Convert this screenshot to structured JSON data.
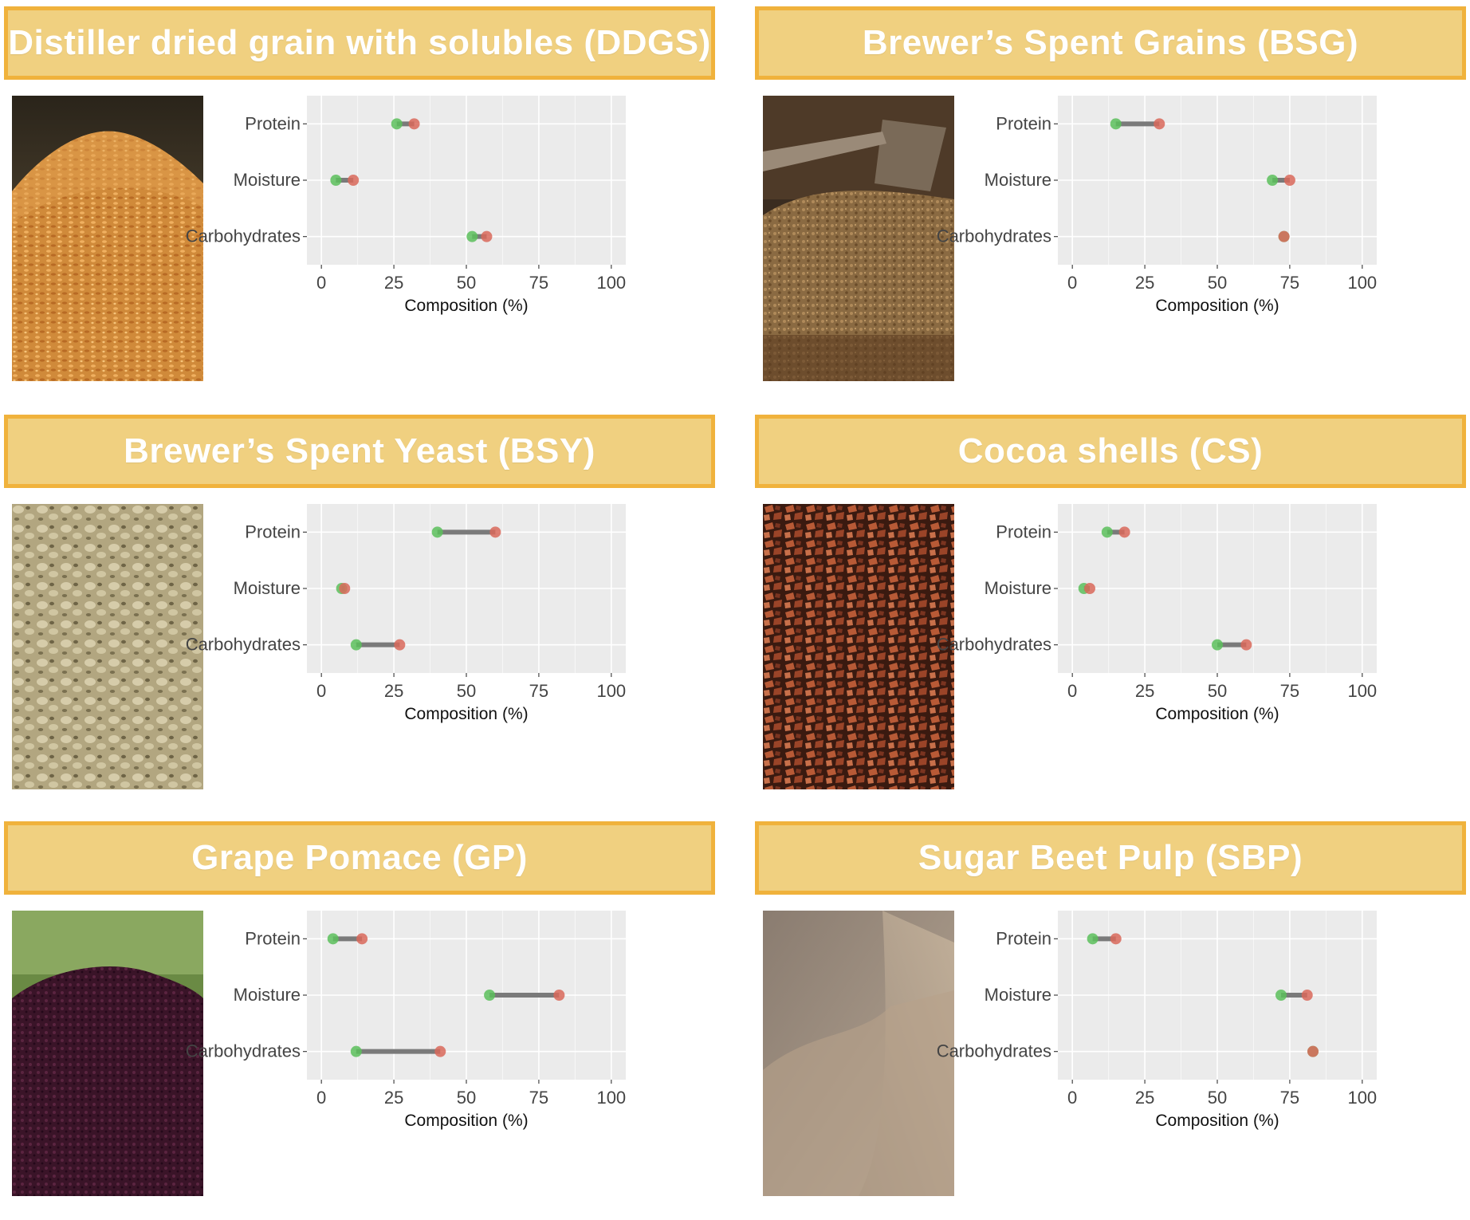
{
  "chart_data": [
    {
      "type": "dumbbell",
      "title": "Distiller dried grain with solubles (DDGS)",
      "image": "ddgs-photo",
      "categories": [
        "Protein",
        "Moisture",
        "Carbohydrates"
      ],
      "series": [
        {
          "name": "",
          "values": [
            26,
            5,
            52
          ]
        },
        {
          "name": "",
          "values": [
            32,
            11,
            57
          ]
        }
      ],
      "xlabel": "Composition (%)",
      "xticks": [
        0,
        25,
        50,
        75,
        100
      ],
      "xlim": [
        -5,
        105
      ],
      "grid": true,
      "colors": {
        "min": "#5cbf5c",
        "max": "#d9695a",
        "segment": "#7a7a7a",
        "background": "#ebebeb"
      }
    },
    {
      "type": "dumbbell",
      "title": "Brewer’s Spent Grains (BSG)",
      "image": "bsg-photo",
      "categories": [
        "Protein",
        "Moisture",
        "Carbohydrates"
      ],
      "series": [
        {
          "name": "",
          "values": [
            15,
            69,
            73
          ]
        },
        {
          "name": "",
          "values": [
            30,
            75,
            73
          ]
        }
      ],
      "xlabel": "Composition (%)",
      "xticks": [
        0,
        25,
        50,
        75,
        100
      ],
      "xlim": [
        -5,
        105
      ],
      "grid": true,
      "colors": {
        "min": "#5cbf5c",
        "max": "#d9695a",
        "segment": "#7a7a7a",
        "background": "#ebebeb"
      }
    },
    {
      "type": "dumbbell",
      "title": "Brewer’s Spent Yeast (BSY)",
      "image": "bsy-photo",
      "categories": [
        "Protein",
        "Moisture",
        "Carbohydrates"
      ],
      "series": [
        {
          "name": "",
          "values": [
            40,
            7,
            12
          ]
        },
        {
          "name": "",
          "values": [
            60,
            8,
            27
          ]
        }
      ],
      "xlabel": "Composition (%)",
      "xticks": [
        0,
        25,
        50,
        75,
        100
      ],
      "xlim": [
        -5,
        105
      ],
      "grid": true,
      "colors": {
        "min": "#5cbf5c",
        "max": "#d9695a",
        "segment": "#7a7a7a",
        "background": "#ebebeb"
      }
    },
    {
      "type": "dumbbell",
      "title": "Cocoa shells (CS)",
      "image": "cs-photo",
      "categories": [
        "Protein",
        "Moisture",
        "Carbohydrates"
      ],
      "series": [
        {
          "name": "",
          "values": [
            12,
            4,
            50
          ]
        },
        {
          "name": "",
          "values": [
            18,
            6,
            60
          ]
        }
      ],
      "xlabel": "Composition (%)",
      "xticks": [
        0,
        25,
        50,
        75,
        100
      ],
      "xlim": [
        -5,
        105
      ],
      "grid": true,
      "colors": {
        "min": "#5cbf5c",
        "max": "#d9695a",
        "segment": "#7a7a7a",
        "background": "#ebebeb"
      }
    },
    {
      "type": "dumbbell",
      "title": "Grape Pomace (GP)",
      "image": "gp-photo",
      "categories": [
        "Protein",
        "Moisture",
        "Carbohydrates"
      ],
      "series": [
        {
          "name": "",
          "values": [
            4,
            58,
            12
          ]
        },
        {
          "name": "",
          "values": [
            14,
            82,
            41
          ]
        }
      ],
      "xlabel": "Composition (%)",
      "xticks": [
        0,
        25,
        50,
        75,
        100
      ],
      "xlim": [
        -5,
        105
      ],
      "grid": true,
      "colors": {
        "min": "#5cbf5c",
        "max": "#d9695a",
        "segment": "#7a7a7a",
        "background": "#ebebeb"
      }
    },
    {
      "type": "dumbbell",
      "title": "Sugar Beet Pulp (SBP)",
      "image": "sbp-photo",
      "categories": [
        "Protein",
        "Moisture",
        "Carbohydrates"
      ],
      "series": [
        {
          "name": "",
          "values": [
            7,
            72,
            83
          ]
        },
        {
          "name": "",
          "values": [
            15,
            81,
            83
          ]
        }
      ],
      "xlabel": "Composition (%)",
      "xticks": [
        0,
        25,
        50,
        75,
        100
      ],
      "xlim": [
        -5,
        105
      ],
      "grid": true,
      "colors": {
        "min": "#5cbf5c",
        "max": "#d9695a",
        "segment": "#7a7a7a",
        "background": "#ebebeb"
      }
    }
  ]
}
